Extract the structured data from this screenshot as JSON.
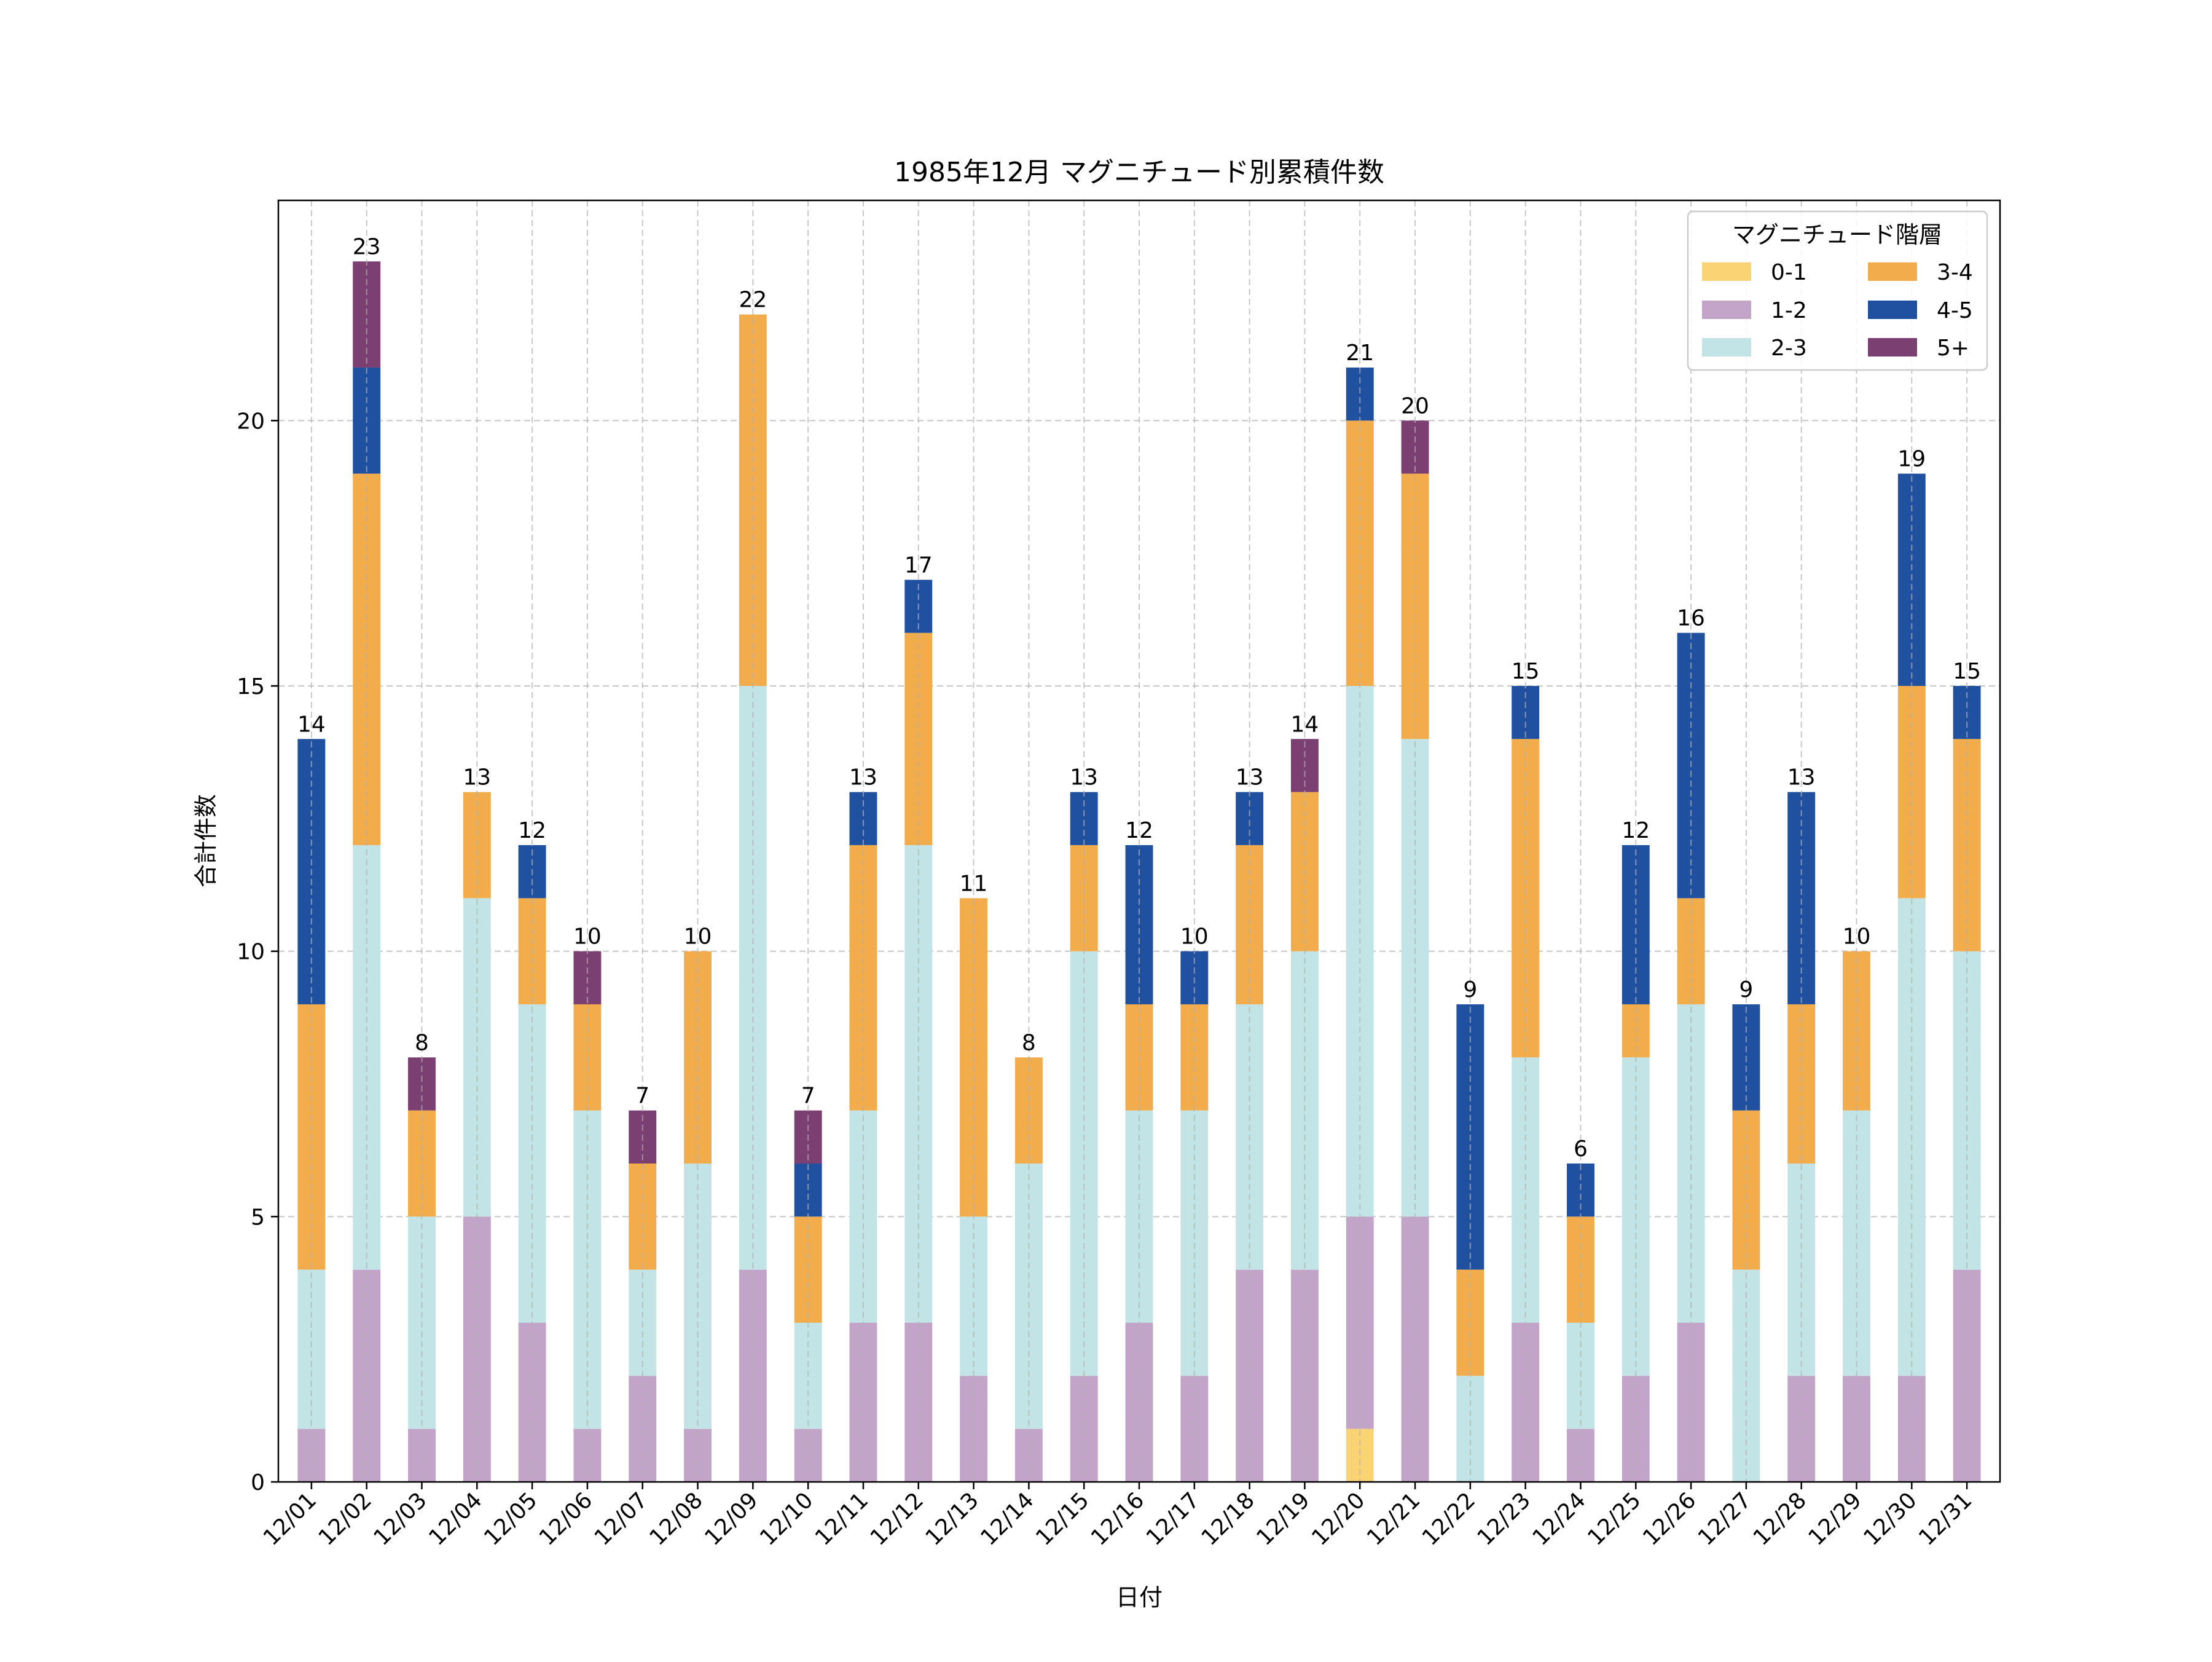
{
  "chart_data": {
    "type": "bar",
    "stacked": true,
    "title": "1985年12月 マグニチュード別累積件数",
    "xlabel": "日付",
    "ylabel": "合計件数",
    "ylim": [
      0,
      24.15
    ],
    "yticks": [
      0,
      5,
      10,
      15,
      20
    ],
    "grid": true,
    "legend_title": "マグニチュード階層",
    "legend_position": "top-right",
    "categories": [
      "12/01",
      "12/02",
      "12/03",
      "12/04",
      "12/05",
      "12/06",
      "12/07",
      "12/08",
      "12/09",
      "12/10",
      "12/11",
      "12/12",
      "12/13",
      "12/14",
      "12/15",
      "12/16",
      "12/17",
      "12/18",
      "12/19",
      "12/20",
      "12/21",
      "12/22",
      "12/23",
      "12/24",
      "12/25",
      "12/26",
      "12/27",
      "12/28",
      "12/29",
      "12/30",
      "12/31"
    ],
    "series": [
      {
        "name": "0-1",
        "color": "#FAD375",
        "values": [
          0,
          0,
          0,
          0,
          0,
          0,
          0,
          0,
          0,
          0,
          0,
          0,
          0,
          0,
          0,
          0,
          0,
          0,
          0,
          1,
          0,
          0,
          0,
          0,
          0,
          0,
          0,
          0,
          0,
          0,
          0
        ]
      },
      {
        "name": "1-2",
        "color": "#C2A4C8",
        "values": [
          1,
          4,
          1,
          5,
          3,
          1,
          2,
          1,
          4,
          1,
          3,
          3,
          2,
          1,
          2,
          3,
          2,
          4,
          4,
          4,
          5,
          0,
          3,
          1,
          2,
          3,
          0,
          2,
          2,
          2,
          4
        ]
      },
      {
        "name": "2-3",
        "color": "#C3E4E6",
        "values": [
          3,
          8,
          4,
          6,
          6,
          6,
          2,
          5,
          11,
          2,
          4,
          9,
          3,
          5,
          8,
          4,
          5,
          5,
          6,
          10,
          9,
          2,
          5,
          2,
          6,
          6,
          4,
          4,
          5,
          9,
          6
        ]
      },
      {
        "name": "3-4",
        "color": "#F2AC4C",
        "values": [
          5,
          7,
          2,
          2,
          2,
          2,
          2,
          4,
          7,
          2,
          5,
          4,
          6,
          2,
          2,
          2,
          2,
          3,
          3,
          5,
          5,
          2,
          6,
          2,
          1,
          2,
          3,
          3,
          3,
          4,
          4
        ]
      },
      {
        "name": "4-5",
        "color": "#2050A0",
        "values": [
          5,
          2,
          0,
          0,
          1,
          0,
          0,
          0,
          0,
          1,
          1,
          1,
          0,
          0,
          1,
          3,
          1,
          1,
          0,
          1,
          0,
          5,
          1,
          1,
          3,
          5,
          2,
          4,
          0,
          4,
          1
        ]
      },
      {
        "name": "5+",
        "color": "#7B3F72",
        "values": [
          0,
          2,
          1,
          0,
          0,
          1,
          1,
          0,
          0,
          1,
          0,
          0,
          0,
          0,
          0,
          0,
          0,
          0,
          1,
          0,
          1,
          0,
          0,
          0,
          0,
          0,
          0,
          0,
          0,
          0,
          0
        ]
      }
    ],
    "totals": [
      14,
      23,
      8,
      13,
      12,
      10,
      7,
      10,
      22,
      7,
      13,
      17,
      11,
      8,
      13,
      12,
      10,
      13,
      14,
      21,
      20,
      9,
      15,
      6,
      12,
      16,
      9,
      13,
      10,
      19,
      15
    ]
  }
}
